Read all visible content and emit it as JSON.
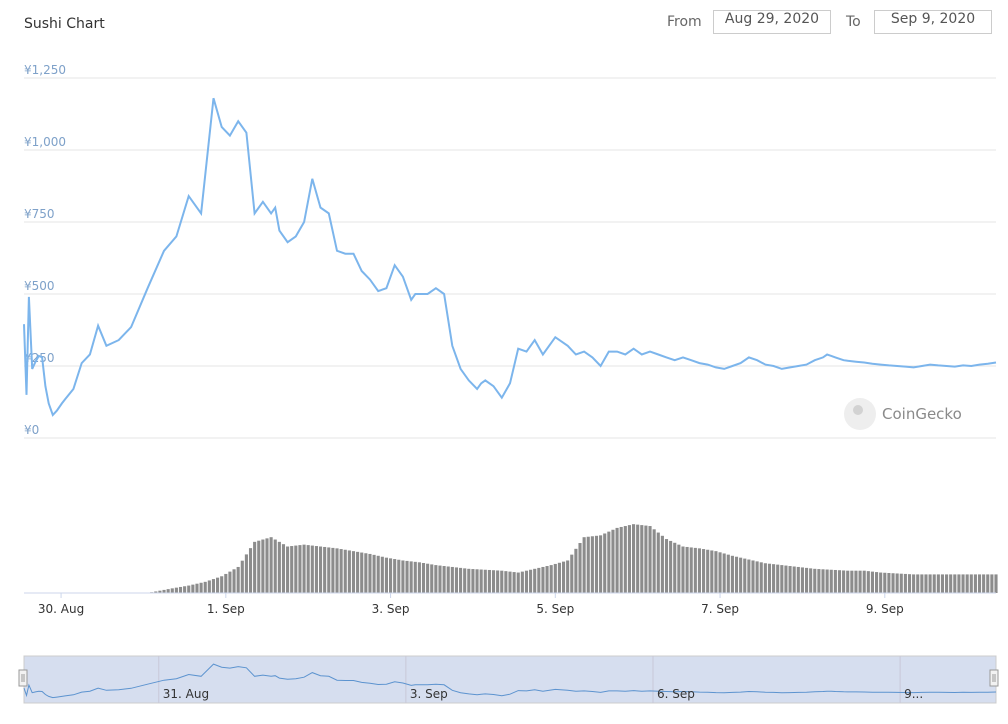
{
  "header": {
    "title": "Sushi Chart",
    "from_label": "From",
    "from_value": "Aug 29, 2020",
    "to_label": "To",
    "to_value": "Sep 9, 2020"
  },
  "watermark": "CoinGecko",
  "colors": {
    "line": "#7cb5ec",
    "volume_bar": "#8c8c8c",
    "grid": "#e6e6e6",
    "navigator_fill": "#d6deef",
    "navigator_line": "#5c93cf"
  },
  "chart_data": [
    {
      "type": "line",
      "title": "",
      "currency": "¥",
      "y_ticks": [
        "¥0",
        "¥250",
        "¥500",
        "¥750",
        "¥1,000",
        "¥1,250"
      ],
      "ylim": [
        0,
        1250
      ],
      "x_ticks": [
        "30. Aug",
        "1. Sep",
        "3. Sep",
        "5. Sep",
        "7. Sep",
        "9. Sep"
      ],
      "grid": true,
      "series": [
        {
          "x": [
            0,
            0.03,
            0.06,
            0.1,
            0.14,
            0.18,
            0.22,
            0.26,
            0.3,
            0.35,
            0.4,
            0.46,
            0.5,
            0.6,
            0.7,
            0.8,
            0.9,
            1.0,
            1.15,
            1.3,
            1.5,
            1.7,
            1.85,
            2.0,
            2.15,
            2.3,
            2.4,
            2.5,
            2.6,
            2.7,
            2.8,
            2.9,
            3.0,
            3.05,
            3.1,
            3.2,
            3.3,
            3.4,
            3.5,
            3.6,
            3.7,
            3.8,
            3.9,
            4.0,
            4.1,
            4.2,
            4.3,
            4.4,
            4.5,
            4.6,
            4.7,
            4.75,
            4.8,
            4.9,
            5.0,
            5.1,
            5.2,
            5.3,
            5.4,
            5.5,
            5.55,
            5.6,
            5.7,
            5.8,
            5.9,
            6.0,
            6.1,
            6.2,
            6.3,
            6.45,
            6.6,
            6.7,
            6.8,
            6.9,
            7.0,
            7.1,
            7.2,
            7.3,
            7.4,
            7.5,
            7.6,
            7.7,
            7.8,
            7.9,
            8.0,
            8.1,
            8.2,
            8.3,
            8.4,
            8.5,
            8.6,
            8.7,
            8.8,
            8.9,
            9.0,
            9.1,
            9.2,
            9.3,
            9.4,
            9.5,
            9.6,
            9.7,
            9.75,
            9.8,
            9.85,
            9.9,
            9.95,
            10.0,
            10.1,
            10.2,
            10.3,
            10.4,
            10.5,
            10.6,
            10.7,
            10.8,
            10.9,
            11.0,
            11.1,
            11.2,
            11.3,
            11.4,
            11.5,
            11.6,
            11.7,
            11.8
          ],
          "values": [
            395,
            150,
            490,
            240,
            265,
            285,
            280,
            180,
            120,
            80,
            95,
            120,
            135,
            170,
            260,
            290,
            390,
            320,
            340,
            385,
            520,
            650,
            700,
            840,
            780,
            1180,
            1080,
            1050,
            1100,
            1060,
            780,
            820,
            780,
            800,
            720,
            680,
            700,
            750,
            900,
            800,
            780,
            650,
            640,
            640,
            580,
            550,
            510,
            520,
            600,
            560,
            480,
            500,
            500,
            500,
            520,
            500,
            320,
            240,
            200,
            170,
            190,
            200,
            180,
            140,
            190,
            310,
            300,
            340,
            290,
            350,
            320,
            290,
            300,
            280,
            250,
            300,
            300,
            290,
            310,
            290,
            300,
            290,
            280,
            270,
            280,
            270,
            260,
            255,
            245,
            240,
            250,
            260,
            280,
            270,
            255,
            250,
            240,
            245,
            250,
            255,
            270,
            280,
            290,
            285,
            280,
            275,
            270,
            268,
            265,
            262,
            258,
            255,
            252,
            250,
            248,
            245,
            250,
            255,
            252,
            250,
            248,
            252,
            250,
            255,
            258,
            262
          ]
        }
      ]
    },
    {
      "type": "bar",
      "title": "",
      "ylim": [
        0,
        100
      ],
      "series": [
        {
          "x": [
            0,
            0.5,
            1.0,
            1.5,
            1.8,
            2.0,
            2.2,
            2.4,
            2.6,
            2.8,
            3.0,
            3.2,
            3.4,
            3.6,
            3.8,
            4.0,
            4.2,
            4.4,
            4.6,
            4.8,
            5.0,
            5.2,
            5.4,
            5.6,
            5.8,
            6.0,
            6.2,
            6.4,
            6.6,
            6.8,
            7.0,
            7.2,
            7.4,
            7.6,
            7.8,
            8.0,
            8.2,
            8.4,
            8.6,
            8.8,
            9.0,
            9.2,
            9.4,
            9.6,
            9.8,
            10.0,
            10.2,
            10.4,
            10.6,
            10.8,
            11.0,
            11.2,
            11.4,
            11.6,
            11.8
          ],
          "values": [
            0,
            0,
            0,
            0,
            5,
            8,
            12,
            18,
            28,
            55,
            60,
            50,
            52,
            50,
            48,
            45,
            42,
            38,
            35,
            33,
            30,
            28,
            26,
            25,
            24,
            22,
            26,
            30,
            35,
            60,
            62,
            70,
            74,
            72,
            58,
            50,
            48,
            45,
            40,
            36,
            32,
            30,
            28,
            26,
            25,
            24,
            24,
            22,
            21,
            20,
            20,
            20,
            20,
            20,
            20
          ]
        }
      ]
    }
  ],
  "navigator": {
    "x_ticks": [
      "31. Aug",
      "3. Sep",
      "6. Sep",
      "9..."
    ]
  }
}
